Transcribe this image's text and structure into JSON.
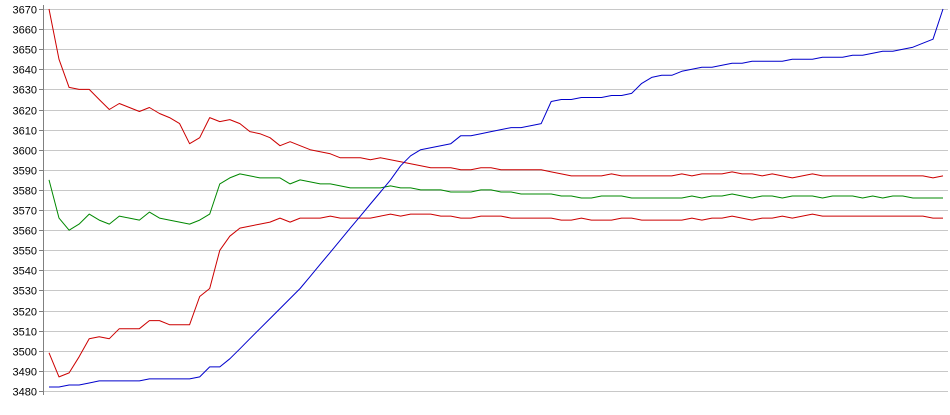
{
  "chart_data": {
    "type": "line",
    "title": "",
    "xlabel": "",
    "ylabel": "",
    "ylim": [
      3480,
      3670
    ],
    "ytick_step": 10,
    "grid": true,
    "legend": "none",
    "colors": {
      "background": "#ffffff",
      "grid": "#c8c8c8",
      "axis": "#808080",
      "red": "#cc0000",
      "green": "#008800",
      "blue": "#0000cc"
    },
    "x": [
      0,
      2,
      4,
      6,
      8,
      10,
      12,
      14,
      16,
      18,
      20,
      22,
      24,
      26,
      28,
      30,
      32,
      34,
      36,
      38,
      40,
      42,
      44,
      46,
      48,
      50,
      52,
      54,
      56,
      58,
      60,
      62,
      64,
      66,
      68,
      70,
      72,
      74,
      76,
      78,
      80,
      82,
      84,
      86,
      88,
      90,
      92,
      94,
      96,
      98,
      100,
      102,
      104,
      106,
      108,
      110,
      112,
      114,
      116,
      118,
      120,
      122,
      124,
      126,
      128,
      130,
      132,
      134,
      136,
      138,
      140,
      142,
      144,
      146,
      148,
      150,
      152,
      154,
      156,
      158,
      160,
      162,
      164,
      166,
      168,
      170,
      172,
      174,
      176,
      178
    ],
    "series": [
      {
        "color": "#cc0000",
        "values": [
          3670,
          3645,
          3631,
          3630,
          3630,
          3625,
          3620,
          3623,
          3621,
          3619,
          3621,
          3618,
          3616,
          3613,
          3603,
          3606,
          3616,
          3614,
          3615,
          3613,
          3609,
          3608,
          3606,
          3602,
          3604,
          3602,
          3600,
          3599,
          3598,
          3596,
          3596,
          3596,
          3595,
          3596,
          3595,
          3594,
          3593,
          3592,
          3591,
          3591,
          3591,
          3590,
          3590,
          3591,
          3591,
          3590,
          3590,
          3590,
          3590,
          3590,
          3589,
          3588,
          3587,
          3587,
          3587,
          3587,
          3588,
          3587,
          3587,
          3587,
          3587,
          3587,
          3587,
          3588,
          3587,
          3588,
          3588,
          3588,
          3589,
          3588,
          3588,
          3587,
          3588,
          3587,
          3586,
          3587,
          3588,
          3587,
          3587,
          3587,
          3587,
          3587,
          3587,
          3587,
          3587,
          3587,
          3587,
          3587,
          3586,
          3587
        ]
      },
      {
        "color": "#008800",
        "values": [
          3585,
          3566,
          3560,
          3563,
          3568,
          3565,
          3563,
          3567,
          3566,
          3565,
          3569,
          3566,
          3565,
          3564,
          3563,
          3565,
          3568,
          3583,
          3586,
          3588,
          3587,
          3586,
          3586,
          3586,
          3583,
          3585,
          3584,
          3583,
          3583,
          3582,
          3581,
          3581,
          3581,
          3581,
          3582,
          3581,
          3581,
          3580,
          3580,
          3580,
          3579,
          3579,
          3579,
          3580,
          3580,
          3579,
          3579,
          3578,
          3578,
          3578,
          3578,
          3577,
          3577,
          3576,
          3576,
          3577,
          3577,
          3577,
          3576,
          3576,
          3576,
          3576,
          3576,
          3576,
          3577,
          3576,
          3577,
          3577,
          3578,
          3577,
          3576,
          3577,
          3577,
          3576,
          3577,
          3577,
          3577,
          3576,
          3577,
          3577,
          3577,
          3576,
          3577,
          3576,
          3577,
          3577,
          3576,
          3576,
          3576,
          3576
        ]
      },
      {
        "color": "#cc0000",
        "values": [
          3499,
          3487,
          3489,
          3497,
          3506,
          3507,
          3506,
          3511,
          3511,
          3511,
          3515,
          3515,
          3513,
          3513,
          3513,
          3527,
          3531,
          3550,
          3557,
          3561,
          3562,
          3563,
          3564,
          3566,
          3564,
          3566,
          3566,
          3566,
          3567,
          3566,
          3566,
          3566,
          3566,
          3567,
          3568,
          3567,
          3568,
          3568,
          3568,
          3567,
          3567,
          3566,
          3566,
          3567,
          3567,
          3567,
          3566,
          3566,
          3566,
          3566,
          3566,
          3565,
          3565,
          3566,
          3565,
          3565,
          3565,
          3566,
          3566,
          3565,
          3565,
          3565,
          3565,
          3565,
          3566,
          3565,
          3566,
          3566,
          3567,
          3566,
          3565,
          3566,
          3566,
          3567,
          3566,
          3567,
          3568,
          3567,
          3567,
          3567,
          3567,
          3567,
          3567,
          3567,
          3567,
          3567,
          3567,
          3567,
          3566,
          3566
        ]
      },
      {
        "color": "#0000cc",
        "values": [
          3482,
          3482,
          3483,
          3483,
          3484,
          3485,
          3485,
          3485,
          3485,
          3485,
          3486,
          3486,
          3486,
          3486,
          3486,
          3487,
          3492,
          3492,
          3496,
          3501,
          3506,
          3511,
          3516,
          3521,
          3526,
          3531,
          3537,
          3543,
          3549,
          3555,
          3561,
          3567,
          3573,
          3579,
          3585,
          3592,
          3597,
          3600,
          3601,
          3602,
          3603,
          3607,
          3607,
          3608,
          3609,
          3610,
          3611,
          3611,
          3612,
          3613,
          3624,
          3625,
          3625,
          3626,
          3626,
          3626,
          3627,
          3627,
          3628,
          3633,
          3636,
          3637,
          3637,
          3639,
          3640,
          3641,
          3641,
          3642,
          3643,
          3643,
          3644,
          3644,
          3644,
          3644,
          3645,
          3645,
          3645,
          3646,
          3646,
          3646,
          3647,
          3647,
          3648,
          3649,
          3649,
          3650,
          3651,
          3653,
          3655,
          3670
        ]
      }
    ]
  }
}
